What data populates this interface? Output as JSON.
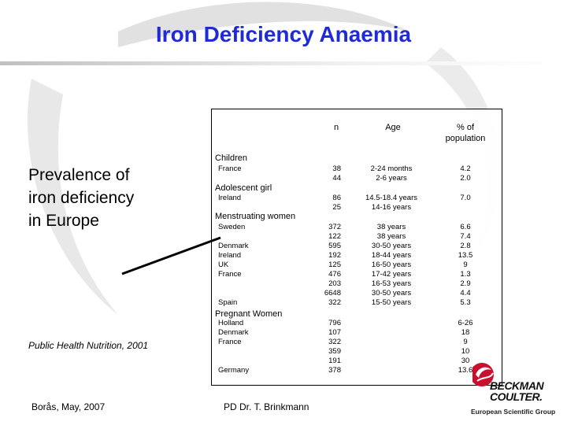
{
  "title": "Iron Deficiency Anaemia",
  "left_panel": {
    "prevalence_lines": [
      "Prevalence of",
      "iron deficiency",
      "in Europe"
    ],
    "citation": "Public Health Nutrition, 2001"
  },
  "table": {
    "headers": {
      "n": "n",
      "age": "Age",
      "pct": "% of\npopulation"
    },
    "sections": {
      "children": "Children",
      "adolescent": "Adolescent girl",
      "menstruating": "Menstruating women",
      "pregnant": "Pregnant Women"
    },
    "children": {
      "countries": [
        "France"
      ],
      "n": [
        "38",
        "44"
      ],
      "age": [
        "2-24  months",
        "2-6 years"
      ],
      "pct": [
        "4.2",
        "2.0"
      ]
    },
    "adolescent": {
      "countries": [
        "Ireland"
      ],
      "n": [
        "86",
        "25"
      ],
      "age": [
        "14.5-18.4 years",
        "14-16 years"
      ],
      "pct": [
        "7.0"
      ]
    },
    "menstruating": {
      "countries": [
        "Sweden",
        "",
        "Denmark",
        "Ireland",
        "UK",
        "France",
        "",
        "",
        "Spain"
      ],
      "n": [
        "372",
        "122",
        "595",
        "192",
        "125",
        "476",
        "203",
        "6648",
        "322"
      ],
      "age": [
        "38  years",
        "38  years",
        "30-50 years",
        "18-44  years",
        "16-50  years",
        "17-42  years",
        "16-53  years",
        "30-50  years",
        "15-50  years"
      ],
      "pct": [
        "6.6",
        "7.4",
        "2.8",
        "13.5",
        "9",
        "1.3",
        "2.9",
        "4.4",
        "5.3"
      ]
    },
    "pregnant": {
      "countries": [
        "Holland",
        "Denmark",
        "France",
        "",
        "",
        "Germany"
      ],
      "n": [
        "796",
        "107",
        "322",
        "359",
        "191",
        "378"
      ],
      "pct": [
        "6-26",
        "18",
        "9",
        "10",
        "30",
        "13.6"
      ]
    }
  },
  "footer": {
    "left": "Borås, May, 2007",
    "middle": "PD Dr. T.  Brinkmann"
  },
  "logo": {
    "name_line1": "BECKMAN",
    "name_line2": "COULTER.",
    "subtitle": "European Scientific Group",
    "color": "#c8102e"
  },
  "colors": {
    "title": "#1f2bd6"
  }
}
